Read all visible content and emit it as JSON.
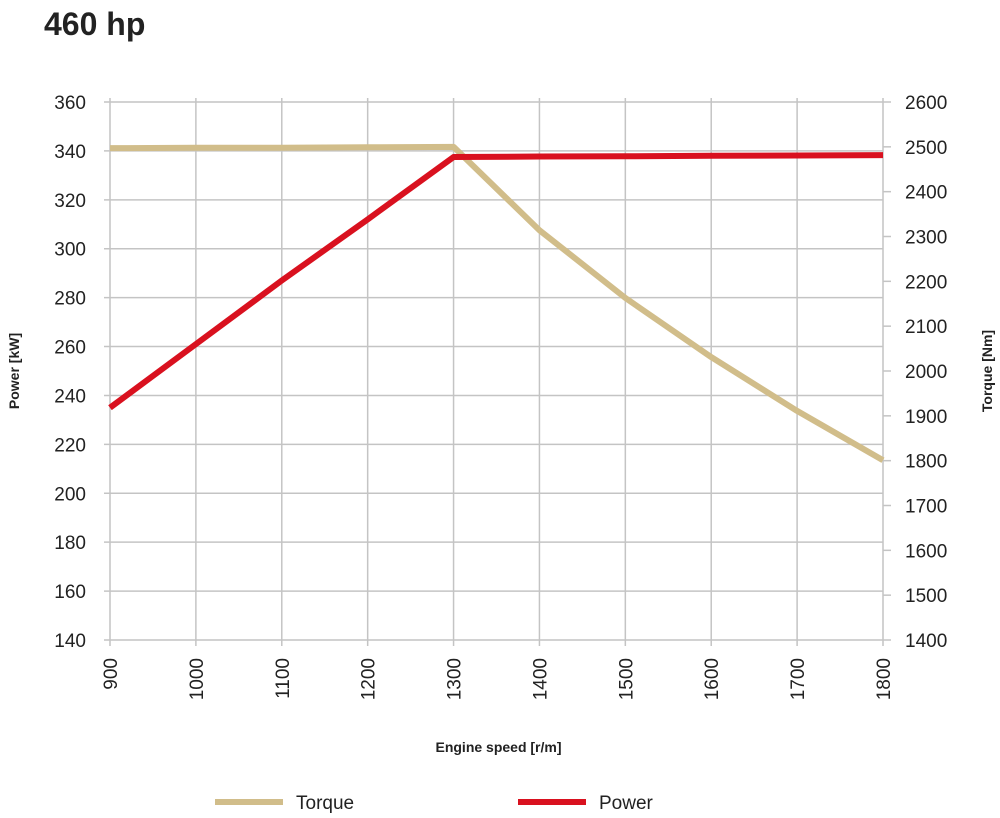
{
  "chart_data": {
    "type": "line",
    "title": "460 hp",
    "xlabel": "Engine speed [r/m]",
    "ylabel_left": "Power [kW]",
    "ylabel_right": "Torque [Nm]",
    "xlim": [
      900,
      1800
    ],
    "ylim_left": [
      140,
      360
    ],
    "ylim_right": [
      1400,
      2600
    ],
    "x_ticks": [
      900,
      1000,
      1100,
      1200,
      1300,
      1400,
      1500,
      1600,
      1700,
      1800
    ],
    "y_ticks_left": [
      140,
      160,
      180,
      200,
      220,
      240,
      260,
      280,
      300,
      320,
      340,
      360
    ],
    "y_ticks_right": [
      1400,
      1500,
      1600,
      1700,
      1800,
      1900,
      2000,
      2100,
      2200,
      2300,
      2400,
      2500,
      2600
    ],
    "grid": true,
    "legend_position": "bottom",
    "series": [
      {
        "name": "Torque",
        "axis": "right",
        "color": "#d1bd8a",
        "x": [
          900,
          1000,
          1100,
          1200,
          1300,
          1400,
          1500,
          1600,
          1700,
          1800
        ],
        "y": [
          2497,
          2498,
          2498,
          2499,
          2500,
          2314,
          2163,
          2031,
          1911,
          1801
        ]
      },
      {
        "name": "Power",
        "axis": "left",
        "color": "#d9111f",
        "x": [
          900,
          1000,
          1100,
          1200,
          1300,
          1400,
          1500,
          1600,
          1700,
          1800
        ],
        "y": [
          235,
          261,
          287,
          312,
          337.5,
          337.7,
          337.8,
          338,
          338.1,
          338.3
        ]
      }
    ]
  }
}
